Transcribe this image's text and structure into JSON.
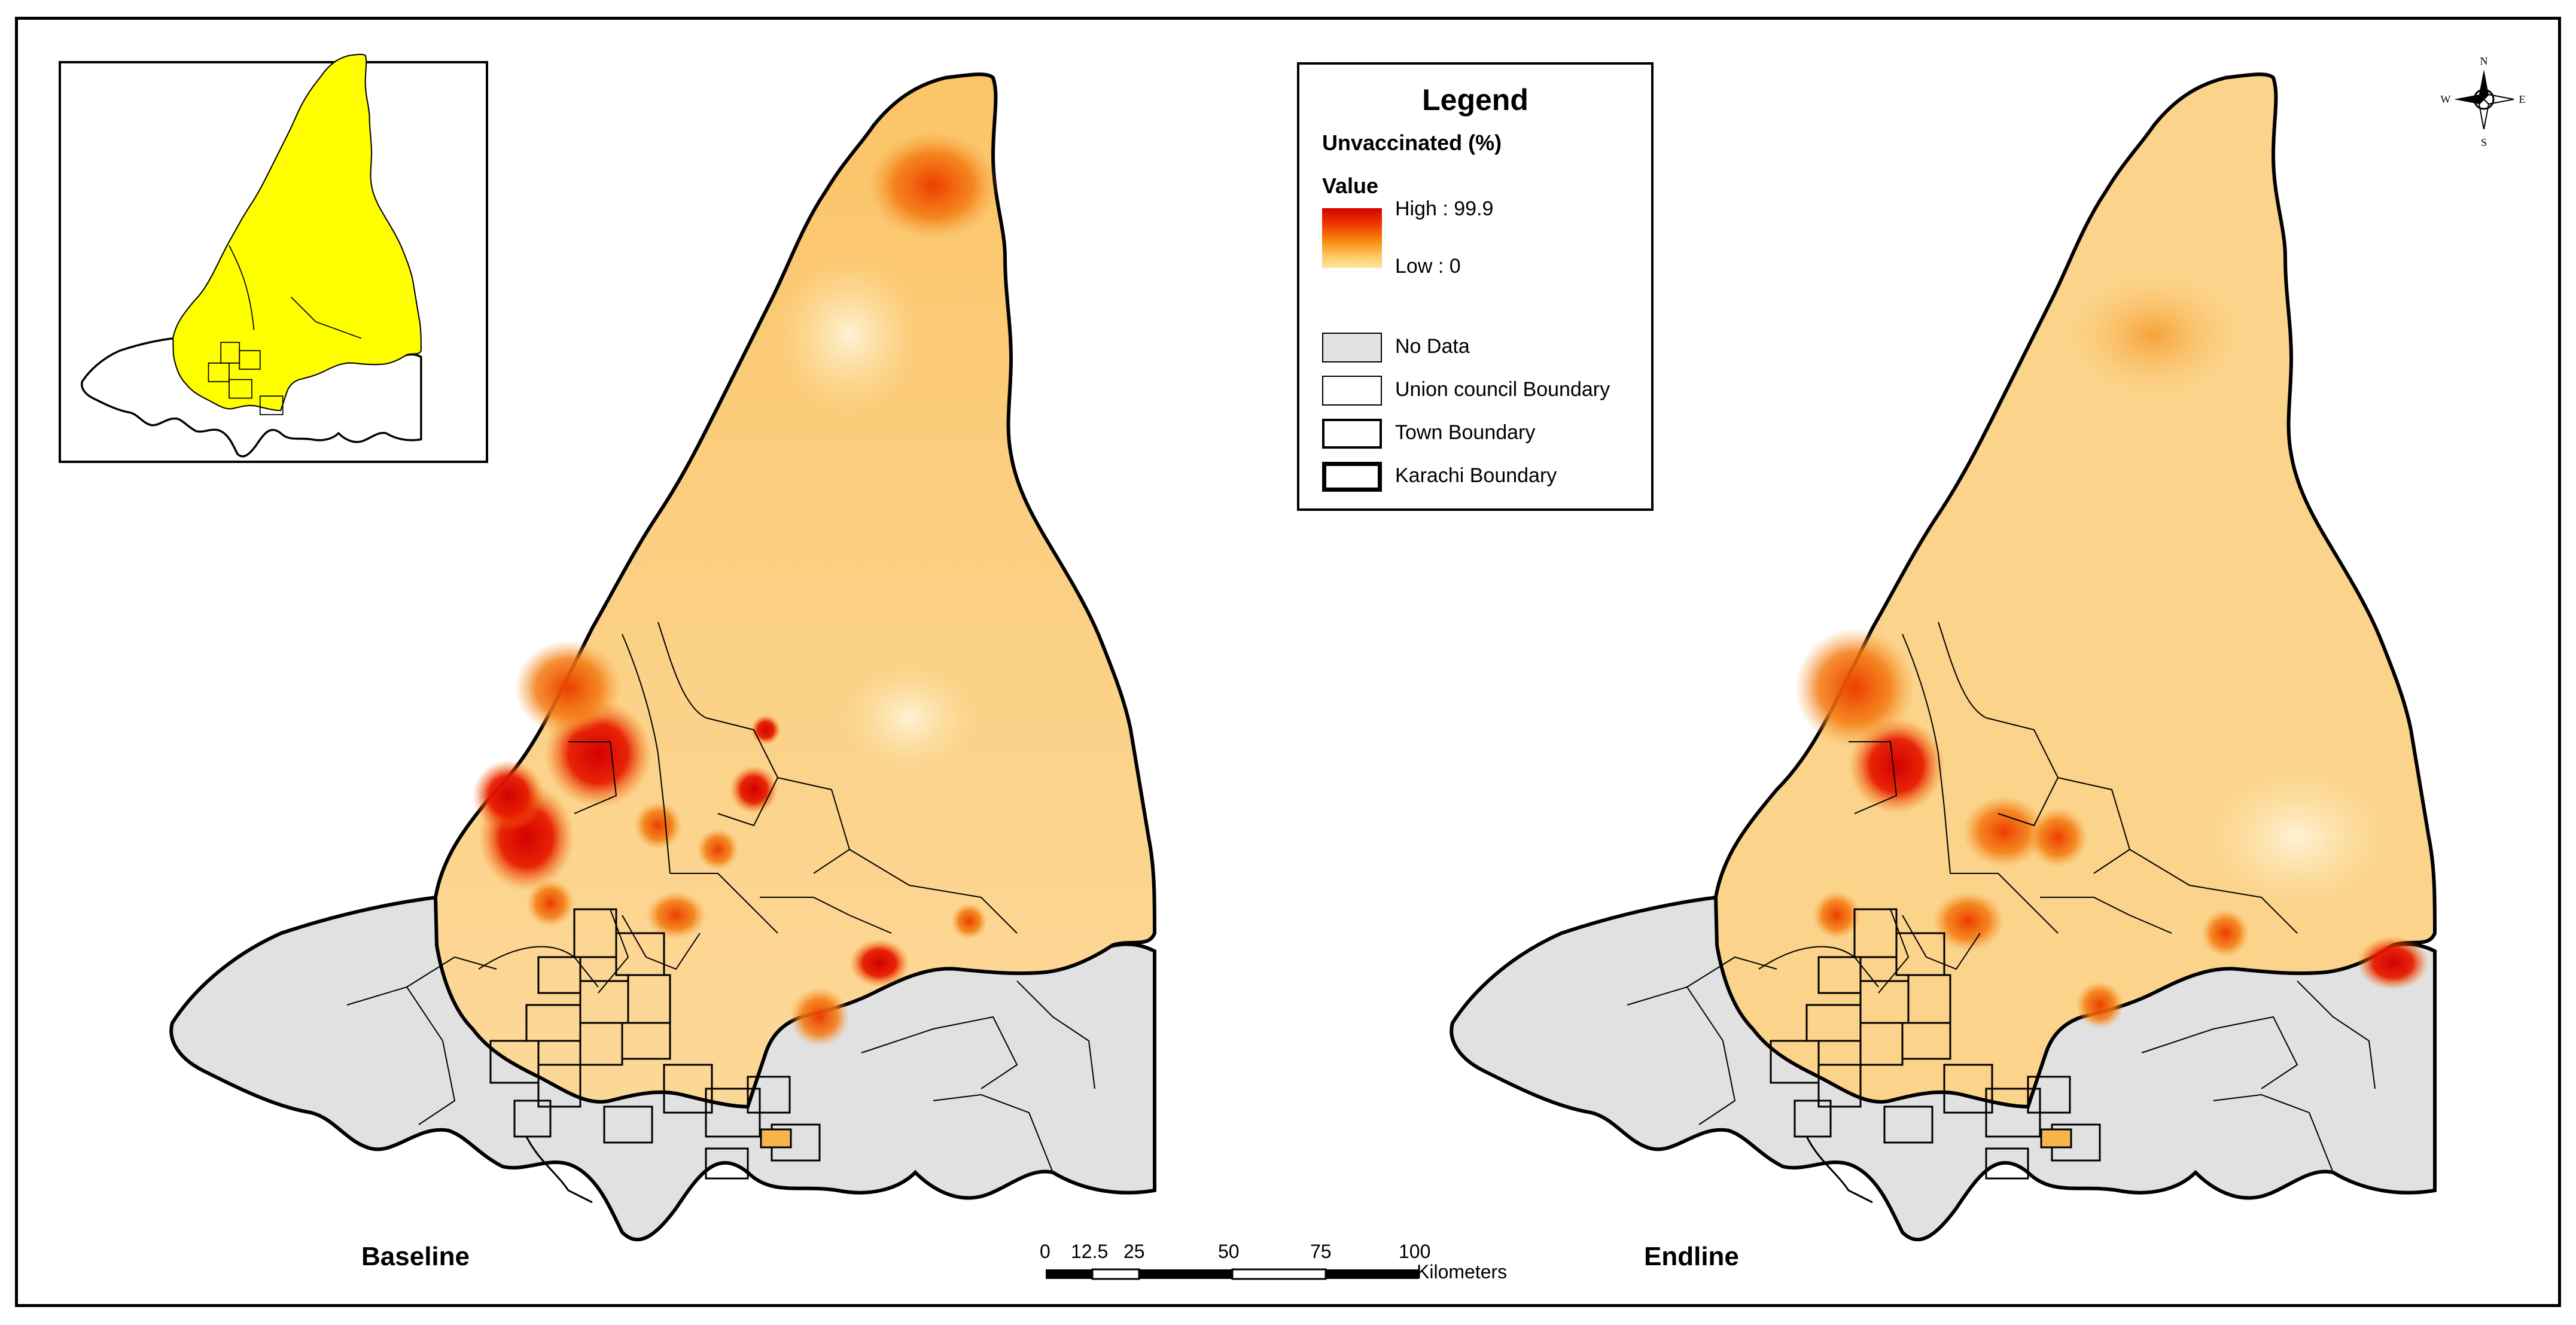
{
  "panels": {
    "baseline_label": "Baseline",
    "endline_label": "Endline"
  },
  "legend": {
    "title": "Legend",
    "subtitle": "Unvaccinated (%)",
    "value_heading": "Value",
    "high_label": "High : 99.9",
    "low_label": "Low : 0",
    "items": [
      {
        "label": "No Data",
        "fill": "#e1e1e1",
        "border": "thin"
      },
      {
        "label": "Union council Boundary",
        "fill": "#ffffff",
        "border": "thin"
      },
      {
        "label": "Town Boundary",
        "fill": "#ffffff",
        "border": "medium"
      },
      {
        "label": "Karachi Boundary",
        "fill": "#ffffff",
        "border": "thick"
      }
    ]
  },
  "scale": {
    "ticks": [
      "0",
      "12.5",
      "25",
      "50",
      "75",
      "100"
    ],
    "unit": "Kilometers"
  },
  "compass": {
    "n": "N",
    "s": "S",
    "e": "E",
    "w": "W"
  },
  "colors": {
    "no_data": "#e1e1e1",
    "low": "#fde4a8",
    "high": "#d40000",
    "inset_highlight": "#ffff00"
  }
}
